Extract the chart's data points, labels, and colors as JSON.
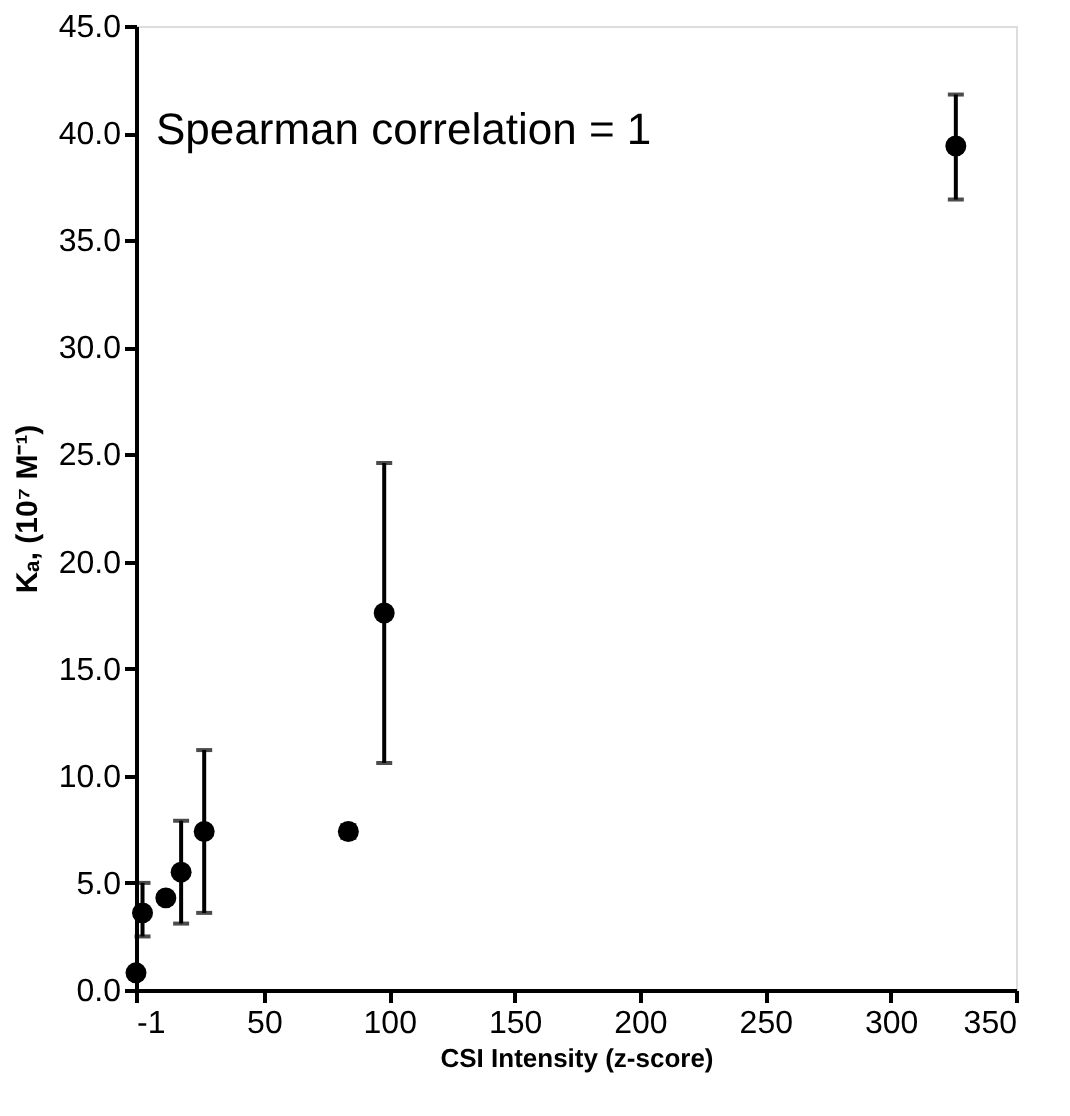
{
  "chart_data": {
    "type": "scatter",
    "xlabel": "CSI Intensity (z-score)",
    "ylabel": "Kₐ, (10⁷ M⁻¹)",
    "annotations": [
      "Spearman correlation = 1"
    ],
    "x": [
      -1,
      1.6,
      10.9,
      17,
      26.2,
      83.7,
      98,
      326
    ],
    "values": [
      0.8,
      3.6,
      4.3,
      5.5,
      7.4,
      7.4,
      17.6,
      39.4
    ],
    "errors": [
      null,
      [
        2.5,
        5.0
      ],
      null,
      [
        3.1,
        7.9
      ],
      [
        3.6,
        11.2
      ],
      [
        7.1,
        7.7
      ],
      [
        10.6,
        24.6
      ],
      [
        36.9,
        41.8
      ]
    ],
    "color": "#000000",
    "marker": "circle",
    "grid": false,
    "xlim": [
      -1,
      350
    ],
    "xticks": [
      {
        "value": -1,
        "label": "-1"
      },
      50,
      100,
      150,
      200,
      250,
      300,
      350
    ],
    "ylim": [
      0,
      45
    ],
    "yticks": [
      {
        "value": 0,
        "label": "0.0"
      },
      {
        "value": 5,
        "label": "5.0"
      },
      {
        "value": 10,
        "label": "10.0"
      },
      {
        "value": 15,
        "label": "15.0"
      },
      {
        "value": 20,
        "label": "20.0"
      },
      {
        "value": 25,
        "label": "25.0"
      },
      {
        "value": 30,
        "label": "30.0"
      },
      {
        "value": 35,
        "label": "35.0"
      },
      {
        "value": 40,
        "label": "40.0"
      },
      {
        "value": 45,
        "label": "45.0"
      }
    ]
  }
}
